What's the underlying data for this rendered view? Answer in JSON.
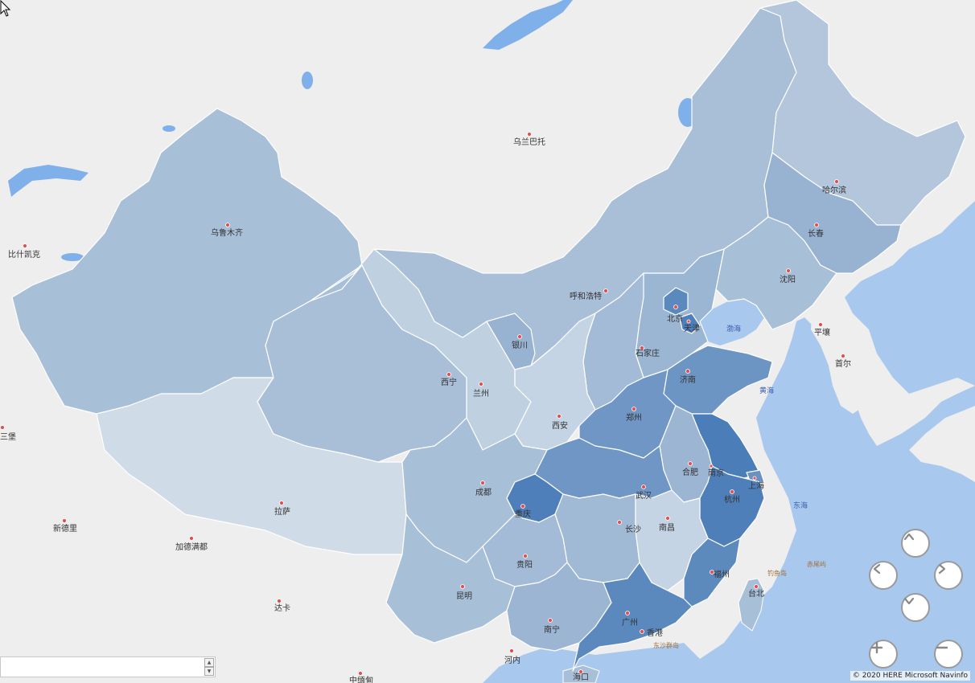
{
  "map": {
    "colors": {
      "land": "#eeeeee",
      "sea": "#a9c8ee",
      "lake": "#7fb0ea",
      "china_base": "#a8bfd8"
    },
    "cities": [
      {
        "name": "乌兰巴托",
        "key": "ulaanbaatar"
      },
      {
        "name": "乌鲁木齐",
        "key": "urumqi"
      },
      {
        "name": "比什凯克",
        "key": "bishkek"
      },
      {
        "name": "哈尔滨",
        "key": "harbin"
      },
      {
        "name": "长春",
        "key": "changchun"
      },
      {
        "name": "沈阳",
        "key": "shenyang"
      },
      {
        "name": "呼和浩特",
        "key": "hohhot"
      },
      {
        "name": "北京",
        "key": "beijing"
      },
      {
        "name": "天津",
        "key": "tianjin"
      },
      {
        "name": "石家庄",
        "key": "shijiazhuang"
      },
      {
        "name": "济南",
        "key": "jinan"
      },
      {
        "name": "银川",
        "key": "yinchuan"
      },
      {
        "name": "西宁",
        "key": "xining"
      },
      {
        "name": "兰州",
        "key": "lanzhou"
      },
      {
        "name": "西安",
        "key": "xian"
      },
      {
        "name": "郑州",
        "key": "zhengzhou"
      },
      {
        "name": "合肥",
        "key": "hefei"
      },
      {
        "name": "南京",
        "key": "nanjing"
      },
      {
        "name": "上海",
        "key": "shanghai"
      },
      {
        "name": "杭州",
        "key": "hangzhou"
      },
      {
        "name": "武汉",
        "key": "wuhan"
      },
      {
        "name": "成都",
        "key": "chengdu"
      },
      {
        "name": "重庆",
        "key": "chongqing"
      },
      {
        "name": "长沙",
        "key": "changsha"
      },
      {
        "name": "南昌",
        "key": "nanchang"
      },
      {
        "name": "福州",
        "key": "fuzhou"
      },
      {
        "name": "台北",
        "key": "taipei"
      },
      {
        "name": "贵阳",
        "key": "guiyang"
      },
      {
        "name": "昆明",
        "key": "kunming"
      },
      {
        "name": "南宁",
        "key": "nanning"
      },
      {
        "name": "广州",
        "key": "guangzhou"
      },
      {
        "name": "香港",
        "key": "hongkong"
      },
      {
        "name": "海口",
        "key": "haikou"
      },
      {
        "name": "河内",
        "key": "hanoi"
      },
      {
        "name": "拉萨",
        "key": "lhasa"
      },
      {
        "name": "新德里",
        "key": "newdelhi"
      },
      {
        "name": "加德满都",
        "key": "kathmandu"
      },
      {
        "name": "达卡",
        "key": "dhaka"
      },
      {
        "name": "平壤",
        "key": "pyongyang"
      },
      {
        "name": "首尔",
        "key": "seoul"
      },
      {
        "name": "三堡",
        "key": "sanbao"
      },
      {
        "name": "中缅甸",
        "key": "myanmar"
      }
    ],
    "seas": [
      {
        "name": "渤海",
        "key": "bohai"
      },
      {
        "name": "黄海",
        "key": "yellowsea"
      },
      {
        "name": "东海",
        "key": "eastsea"
      }
    ],
    "islands": [
      {
        "name": "钓鱼岛",
        "key": "diaoyu"
      },
      {
        "name": "赤尾屿",
        "key": "chiwei"
      },
      {
        "name": "东沙群岛",
        "key": "dongsha"
      }
    ]
  },
  "controls": {
    "pan_up_icon": "chevron-up-icon",
    "pan_left_icon": "chevron-left-icon",
    "pan_right_icon": "chevron-right-icon",
    "pan_down_icon": "chevron-down-icon",
    "zoom_in_icon": "plus-icon",
    "zoom_out_icon": "minus-icon"
  },
  "attribution": "© 2020 HERE  Microsoft  Navinfo"
}
